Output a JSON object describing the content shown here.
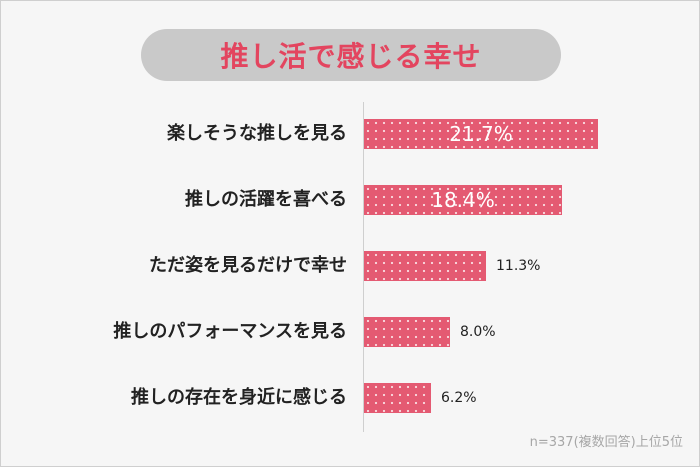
{
  "title": "推し活で感じる幸せ",
  "footnote": "n=337(複数回答)上位5位",
  "colors": {
    "bar": "#e45a72",
    "title_text": "#e3455f",
    "title_bg": "#c9c9c9"
  },
  "chart_data": {
    "type": "bar",
    "orientation": "horizontal",
    "title": "推し活で感じる幸せ",
    "categories": [
      "楽しそうな推しを見る",
      "推しの活躍を喜べる",
      "ただ姿を見るだけで幸せ",
      "推しのパフォーマンスを見る",
      "推しの存在を身近に感じる"
    ],
    "values": [
      21.7,
      18.4,
      11.3,
      8.0,
      6.2
    ],
    "value_labels": [
      "21.7%",
      "18.4%",
      "11.3%",
      "8.0%",
      "6.2%"
    ],
    "unit": "%",
    "grid": false,
    "legend": "none"
  }
}
